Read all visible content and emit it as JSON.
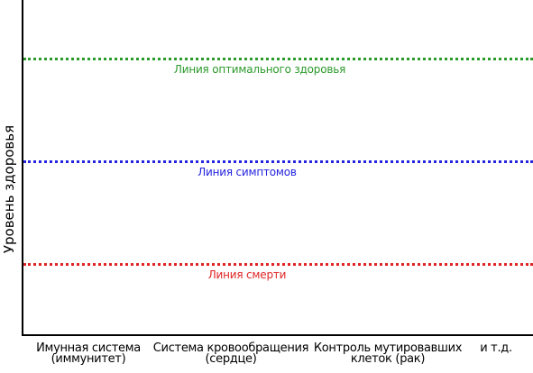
{
  "y_axis_label": "Уровень здоровья",
  "lines": [
    {
      "label": "Линия оптимального здоровья",
      "color": "#2a9a2a"
    },
    {
      "label": "Линия симптомов",
      "color": "#2424e0"
    },
    {
      "label": "Линия смерти",
      "color": "#e02424"
    }
  ],
  "categories": [
    {
      "line1": "Имунная система",
      "line2": "(иммунитет)"
    },
    {
      "line1": "Система кровообращения",
      "line2": "(сердце)"
    },
    {
      "line1": "Контроль мутировавших",
      "line2": "клеток (рак)"
    },
    {
      "line1": "и т.д.",
      "line2": ""
    }
  ]
}
